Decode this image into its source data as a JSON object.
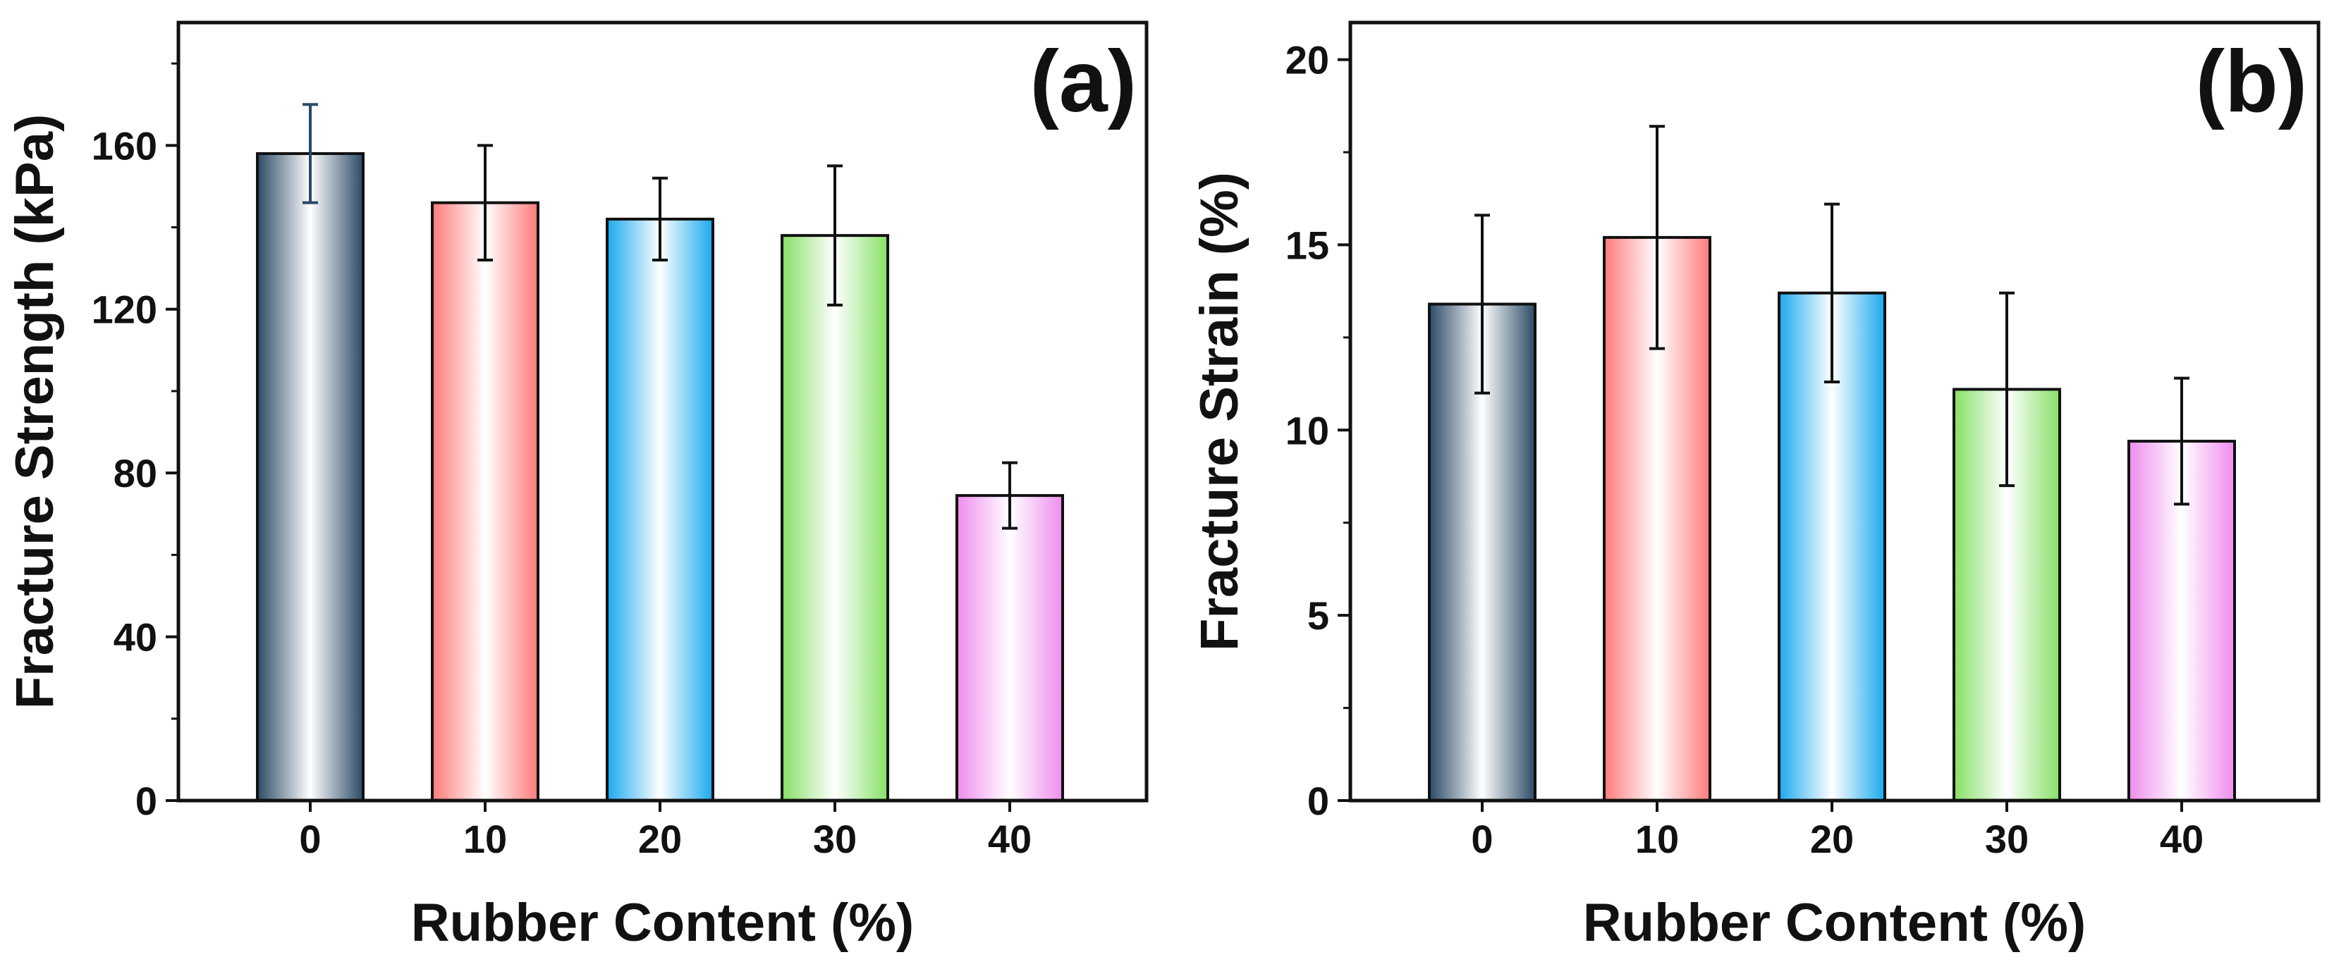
{
  "chart_data": [
    {
      "type": "bar",
      "panel_label": "(a)",
      "categories": [
        "0",
        "10",
        "20",
        "30",
        "40"
      ],
      "values": [
        158,
        146,
        142,
        138,
        74.5
      ],
      "errors": [
        12,
        14,
        10,
        17,
        8
      ],
      "xlabel": "Rubber Content (%)",
      "ylabel": "Fracture Strength (kPa)",
      "ylim": [
        0,
        190
      ],
      "yticks": [
        0,
        40,
        80,
        120,
        160
      ],
      "grid": false
    },
    {
      "type": "bar",
      "panel_label": "(b)",
      "categories": [
        "0",
        "10",
        "20",
        "30",
        "40"
      ],
      "values": [
        13.4,
        15.2,
        13.7,
        11.1,
        9.7
      ],
      "errors": [
        2.4,
        3.0,
        2.4,
        2.6,
        1.7
      ],
      "xlabel": "Rubber Content (%)",
      "ylabel": "Fracture Strain (%)",
      "ylim": [
        0,
        21
      ],
      "yticks": [
        0,
        5,
        10,
        15,
        20
      ],
      "grid": false
    }
  ],
  "bar_colors": [
    "#2b4a66",
    "#ff7a7a",
    "#1aa9ee",
    "#86e066",
    "#ee8cee"
  ]
}
